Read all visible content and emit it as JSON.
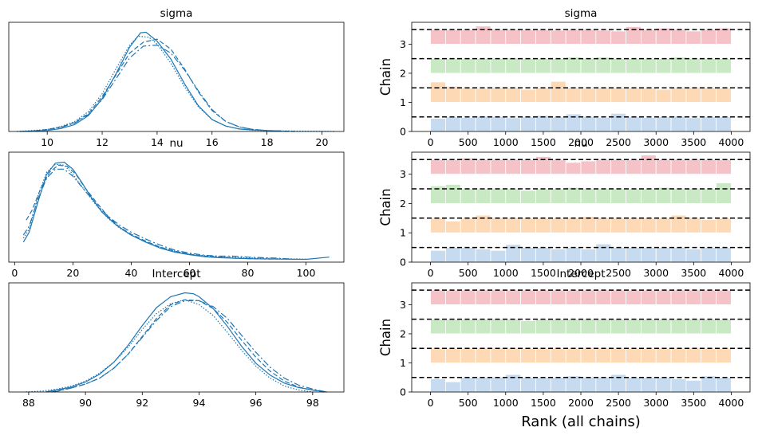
{
  "chart_data": [
    {
      "type": "line",
      "title": "sigma",
      "xlim": [
        8.6,
        20.8
      ],
      "xticks": [
        10,
        12,
        14,
        16,
        18,
        20
      ],
      "ylim": [
        0,
        1.1
      ],
      "series": [
        {
          "style": "solid",
          "x": [
            9.0,
            10.0,
            10.5,
            11.0,
            11.5,
            12.0,
            12.5,
            13.0,
            13.4,
            13.6,
            14.0,
            14.5,
            15.0,
            15.5,
            16.0,
            16.5,
            17.0,
            17.5,
            18.0,
            18.5
          ],
          "y": [
            0.0,
            0.01,
            0.03,
            0.07,
            0.16,
            0.33,
            0.58,
            0.85,
            0.995,
            1.0,
            0.91,
            0.73,
            0.48,
            0.26,
            0.12,
            0.055,
            0.025,
            0.015,
            0.01,
            0.005
          ]
        },
        {
          "style": "dashed",
          "x": [
            9.3,
            10.0,
            10.5,
            11.0,
            11.5,
            12.0,
            12.5,
            13.0,
            13.5,
            14.0,
            14.5,
            15.0,
            15.5,
            16.0,
            16.5,
            17.0,
            17.5,
            18.0,
            18.5,
            19.0
          ],
          "y": [
            0.0,
            0.02,
            0.045,
            0.09,
            0.18,
            0.35,
            0.57,
            0.79,
            0.9,
            0.93,
            0.83,
            0.63,
            0.4,
            0.21,
            0.1,
            0.045,
            0.02,
            0.01,
            0.005,
            0.0
          ]
        },
        {
          "style": "dashdot",
          "x": [
            9.6,
            10.5,
            11.0,
            11.5,
            12.0,
            12.5,
            13.0,
            13.5,
            14.0,
            14.5,
            15.0,
            15.5,
            16.0,
            16.5,
            17.0,
            17.5,
            18.0,
            18.2
          ],
          "y": [
            0.0,
            0.04,
            0.085,
            0.17,
            0.32,
            0.53,
            0.74,
            0.86,
            0.87,
            0.79,
            0.62,
            0.41,
            0.22,
            0.1,
            0.045,
            0.02,
            0.01,
            0.005
          ]
        },
        {
          "style": "dotted",
          "x": [
            8.9,
            10.0,
            10.5,
            11.0,
            11.5,
            12.0,
            12.5,
            13.0,
            13.3,
            13.7,
            14.0,
            14.5,
            15.0,
            15.5,
            16.0,
            16.5,
            17.0,
            17.5,
            18.0,
            19.0,
            20.5
          ],
          "y": [
            0.0,
            0.02,
            0.05,
            0.1,
            0.2,
            0.38,
            0.63,
            0.87,
            0.96,
            0.95,
            0.88,
            0.69,
            0.45,
            0.25,
            0.12,
            0.055,
            0.025,
            0.012,
            0.008,
            0.004,
            0.0
          ]
        }
      ]
    },
    {
      "type": "bar",
      "title": "sigma",
      "ylabel": "Chain",
      "xlim": [
        -250,
        4250
      ],
      "xticks": [
        0,
        500,
        1000,
        1500,
        2000,
        2500,
        3000,
        3500,
        4000
      ],
      "ylim": [
        0,
        3.75
      ],
      "yticks": [
        0,
        1,
        2,
        3
      ],
      "bin_width": 200,
      "chain_colors": [
        "#c6dbef",
        "#fdd9b5",
        "#c9e8c4",
        "#f5c2c7"
      ],
      "reference_lines": [
        0.5,
        1.5,
        2.5,
        3.5
      ],
      "chains": [
        [
          0.45,
          0.5,
          0.48,
          0.52,
          0.5,
          0.47,
          0.5,
          0.55,
          0.5,
          0.6,
          0.5,
          0.48,
          0.62,
          0.5,
          0.48,
          0.5,
          0.52,
          0.47,
          0.5,
          0.5
        ],
        [
          0.7,
          0.55,
          0.5,
          0.48,
          0.5,
          0.5,
          0.45,
          0.5,
          0.72,
          0.5,
          0.48,
          0.5,
          0.5,
          0.5,
          0.5,
          0.45,
          0.5,
          0.5,
          0.5,
          0.5
        ],
        [
          0.5,
          0.5,
          0.5,
          0.5,
          0.5,
          0.52,
          0.5,
          0.5,
          0.5,
          0.55,
          0.5,
          0.55,
          0.5,
          0.5,
          0.5,
          0.5,
          0.55,
          0.5,
          0.5,
          0.5
        ],
        [
          0.5,
          0.5,
          0.5,
          0.62,
          0.5,
          0.5,
          0.5,
          0.5,
          0.48,
          0.5,
          0.5,
          0.48,
          0.45,
          0.6,
          0.5,
          0.55,
          0.5,
          0.45,
          0.5,
          0.55
        ]
      ]
    },
    {
      "type": "line",
      "title": "nu",
      "xlim": [
        -2,
        113
      ],
      "xticks": [
        0,
        20,
        40,
        60,
        80,
        100
      ],
      "ylim": [
        0,
        1.1
      ],
      "series": [
        {
          "style": "solid",
          "x": [
            3,
            5,
            8,
            11,
            14,
            17,
            20,
            23,
            26,
            30,
            35,
            40,
            45,
            50,
            55,
            60,
            65,
            70,
            75,
            80,
            90,
            100,
            108
          ],
          "y": [
            0.2,
            0.3,
            0.6,
            0.88,
            0.99,
            1.0,
            0.93,
            0.8,
            0.66,
            0.5,
            0.37,
            0.27,
            0.2,
            0.14,
            0.1,
            0.075,
            0.055,
            0.045,
            0.04,
            0.035,
            0.03,
            0.028,
            0.05
          ]
        },
        {
          "style": "dashed",
          "x": [
            4,
            6,
            9,
            12,
            15,
            18,
            21,
            24,
            28,
            32,
            36,
            40,
            45,
            50,
            55,
            60,
            65,
            70,
            75,
            80,
            88
          ],
          "y": [
            0.42,
            0.52,
            0.74,
            0.9,
            0.97,
            0.96,
            0.88,
            0.75,
            0.6,
            0.46,
            0.35,
            0.28,
            0.21,
            0.15,
            0.11,
            0.08,
            0.06,
            0.05,
            0.04,
            0.035,
            0.03
          ]
        },
        {
          "style": "dashdot",
          "x": [
            3,
            5,
            8,
            11,
            14,
            17,
            20,
            24,
            28,
            32,
            36,
            40,
            45,
            50,
            55,
            60,
            65,
            70,
            75,
            80,
            90,
            95
          ],
          "y": [
            0.27,
            0.36,
            0.63,
            0.84,
            0.93,
            0.93,
            0.86,
            0.72,
            0.58,
            0.46,
            0.37,
            0.3,
            0.23,
            0.17,
            0.12,
            0.09,
            0.07,
            0.06,
            0.06,
            0.05,
            0.04,
            0.03
          ]
        },
        {
          "style": "dotted",
          "x": [
            3,
            5,
            8,
            11,
            14,
            17,
            20,
            24,
            28,
            32,
            36,
            40,
            45,
            50,
            55,
            60,
            65,
            70,
            75,
            80,
            90,
            100
          ],
          "y": [
            0.24,
            0.33,
            0.66,
            0.9,
            0.98,
            0.97,
            0.88,
            0.72,
            0.57,
            0.44,
            0.34,
            0.27,
            0.2,
            0.15,
            0.11,
            0.08,
            0.065,
            0.055,
            0.05,
            0.045,
            0.035,
            0.03
          ]
        }
      ]
    },
    {
      "type": "bar",
      "title": "nu",
      "ylabel": "Chain",
      "xlim": [
        -250,
        4250
      ],
      "xticks": [
        0,
        500,
        1000,
        1500,
        2000,
        2500,
        3000,
        3500,
        4000
      ],
      "ylim": [
        0,
        3.75
      ],
      "yticks": [
        0,
        1,
        2,
        3
      ],
      "bin_width": 200,
      "chain_colors": [
        "#c6dbef",
        "#fdd9b5",
        "#c9e8c4",
        "#f5c2c7"
      ],
      "reference_lines": [
        0.5,
        1.5,
        2.5,
        3.5
      ],
      "chains": [
        [
          0.4,
          0.5,
          0.5,
          0.45,
          0.4,
          0.6,
          0.5,
          0.5,
          0.45,
          0.5,
          0.45,
          0.62,
          0.5,
          0.5,
          0.5,
          0.5,
          0.5,
          0.45,
          0.5,
          0.5
        ],
        [
          0.5,
          0.4,
          0.5,
          0.6,
          0.5,
          0.5,
          0.5,
          0.5,
          0.5,
          0.5,
          0.55,
          0.5,
          0.5,
          0.5,
          0.5,
          0.5,
          0.6,
          0.5,
          0.45,
          0.5
        ],
        [
          0.6,
          0.65,
          0.5,
          0.5,
          0.5,
          0.5,
          0.45,
          0.5,
          0.5,
          0.55,
          0.5,
          0.5,
          0.5,
          0.5,
          0.5,
          0.55,
          0.5,
          0.5,
          0.5,
          0.7
        ],
        [
          0.5,
          0.5,
          0.55,
          0.5,
          0.5,
          0.5,
          0.5,
          0.6,
          0.5,
          0.4,
          0.45,
          0.5,
          0.5,
          0.5,
          0.65,
          0.5,
          0.5,
          0.5,
          0.5,
          0.5
        ]
      ]
    },
    {
      "type": "line",
      "title": "Intercept",
      "xlim": [
        87.3,
        99.1
      ],
      "xticks": [
        88,
        90,
        92,
        94,
        96,
        98
      ],
      "ylim": [
        0,
        1.1
      ],
      "series": [
        {
          "style": "solid",
          "x": [
            88.6,
            89.5,
            90.0,
            90.5,
            91.0,
            91.5,
            92.0,
            92.5,
            93.0,
            93.5,
            93.8,
            94.0,
            94.5,
            95.0,
            95.5,
            96.0,
            96.5,
            97.0,
            97.5,
            98.0,
            98.5
          ],
          "y": [
            0.0,
            0.05,
            0.1,
            0.18,
            0.3,
            0.47,
            0.67,
            0.85,
            0.96,
            1.0,
            0.99,
            0.96,
            0.84,
            0.66,
            0.46,
            0.29,
            0.17,
            0.09,
            0.045,
            0.02,
            0.0
          ]
        },
        {
          "style": "dashed",
          "x": [
            88.8,
            89.5,
            90.0,
            90.5,
            91.0,
            91.5,
            92.0,
            92.5,
            93.0,
            93.5,
            94.0,
            94.5,
            95.0,
            95.5,
            96.0,
            96.5,
            97.0,
            97.5,
            98.0,
            98.4
          ],
          "y": [
            0.0,
            0.04,
            0.08,
            0.14,
            0.24,
            0.38,
            0.56,
            0.74,
            0.88,
            0.93,
            0.92,
            0.84,
            0.7,
            0.52,
            0.35,
            0.21,
            0.11,
            0.05,
            0.02,
            0.0
          ]
        },
        {
          "style": "dashdot",
          "x": [
            88.9,
            89.5,
            90.0,
            90.5,
            91.0,
            91.5,
            92.0,
            92.5,
            93.0,
            93.5,
            94.0,
            94.5,
            95.0,
            95.5,
            96.0,
            96.5,
            97.0,
            97.5,
            98.0,
            98.5
          ],
          "y": [
            0.0,
            0.04,
            0.08,
            0.14,
            0.24,
            0.38,
            0.55,
            0.72,
            0.86,
            0.92,
            0.92,
            0.86,
            0.74,
            0.57,
            0.4,
            0.25,
            0.14,
            0.07,
            0.03,
            0.0
          ]
        },
        {
          "style": "dotted",
          "x": [
            87.9,
            88.5,
            89.0,
            89.5,
            90.0,
            90.5,
            91.0,
            91.5,
            92.0,
            92.5,
            93.0,
            93.5,
            94.0,
            94.5,
            95.0,
            95.5,
            96.0,
            96.5,
            97.0,
            97.5,
            98.0
          ],
          "y": [
            0.0,
            0.01,
            0.03,
            0.06,
            0.11,
            0.19,
            0.3,
            0.45,
            0.63,
            0.79,
            0.89,
            0.93,
            0.88,
            0.77,
            0.6,
            0.42,
            0.26,
            0.14,
            0.06,
            0.02,
            0.0
          ]
        }
      ]
    },
    {
      "type": "bar",
      "title": "Intercept",
      "ylabel": "Chain",
      "xlabel": "Rank (all chains)",
      "xlim": [
        -250,
        4250
      ],
      "xticks": [
        0,
        500,
        1000,
        1500,
        2000,
        2500,
        3000,
        3500,
        4000
      ],
      "ylim": [
        0,
        3.75
      ],
      "yticks": [
        0,
        1,
        2,
        3
      ],
      "bin_width": 200,
      "chain_colors": [
        "#c6dbef",
        "#fdd9b5",
        "#c9e8c4",
        "#f5c2c7"
      ],
      "reference_lines": [
        0.5,
        1.5,
        2.5,
        3.5
      ],
      "chains": [
        [
          0.45,
          0.35,
          0.5,
          0.5,
          0.5,
          0.6,
          0.5,
          0.5,
          0.5,
          0.55,
          0.5,
          0.5,
          0.6,
          0.5,
          0.5,
          0.5,
          0.45,
          0.4,
          0.55,
          0.5
        ],
        [
          0.5,
          0.5,
          0.5,
          0.5,
          0.5,
          0.5,
          0.5,
          0.5,
          0.5,
          0.5,
          0.5,
          0.5,
          0.5,
          0.5,
          0.5,
          0.5,
          0.5,
          0.5,
          0.5,
          0.5
        ],
        [
          0.5,
          0.5,
          0.5,
          0.5,
          0.5,
          0.5,
          0.45,
          0.5,
          0.5,
          0.5,
          0.5,
          0.5,
          0.5,
          0.5,
          0.5,
          0.5,
          0.5,
          0.5,
          0.5,
          0.5
        ],
        [
          0.5,
          0.5,
          0.5,
          0.5,
          0.5,
          0.5,
          0.5,
          0.5,
          0.5,
          0.5,
          0.5,
          0.5,
          0.5,
          0.5,
          0.5,
          0.5,
          0.5,
          0.5,
          0.5,
          0.5
        ]
      ]
    }
  ]
}
